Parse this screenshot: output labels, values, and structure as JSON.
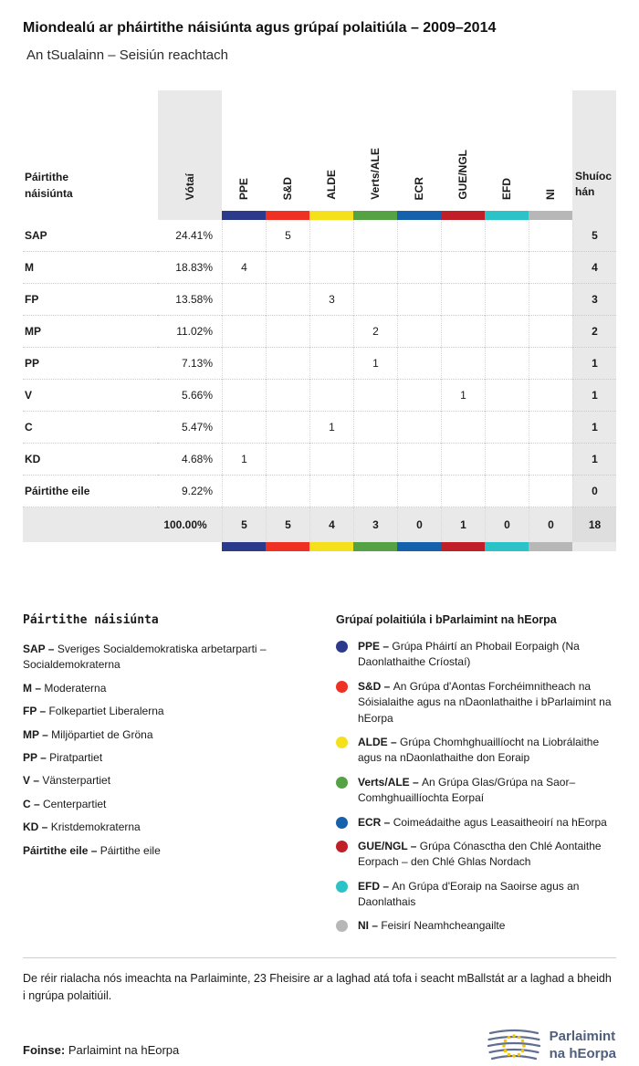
{
  "header": {
    "title": "Miondealú ar pháirtithe náisiúnta agus grúpaí polaitiúla – 2009–2014",
    "subtitle": "An tSualainn – Seisiún reachtach"
  },
  "table": {
    "row_header": "Páirtithe náisiúnta",
    "votes_header": "Vótaí",
    "seats_header": "Shuíochán",
    "groups": [
      {
        "label": "PPE",
        "color": "#2c3a8c"
      },
      {
        "label": "S&D",
        "color": "#ee3123"
      },
      {
        "label": "ALDE",
        "color": "#f4e11c"
      },
      {
        "label": "Verts/ALE",
        "color": "#55a245"
      },
      {
        "label": "ECR",
        "color": "#1661ac"
      },
      {
        "label": "GUE/NGL",
        "color": "#c01f28"
      },
      {
        "label": "EFD",
        "color": "#2bc3c7"
      },
      {
        "label": "NI",
        "color": "#b7b7b7"
      }
    ],
    "rows": [
      {
        "party": "SAP",
        "votes": "24.41%",
        "cells": [
          "",
          "5",
          "",
          "",
          "",
          "",
          "",
          ""
        ],
        "seats": "5"
      },
      {
        "party": "M",
        "votes": "18.83%",
        "cells": [
          "4",
          "",
          "",
          "",
          "",
          "",
          "",
          ""
        ],
        "seats": "4"
      },
      {
        "party": "FP",
        "votes": "13.58%",
        "cells": [
          "",
          "",
          "3",
          "",
          "",
          "",
          "",
          ""
        ],
        "seats": "3"
      },
      {
        "party": "MP",
        "votes": "11.02%",
        "cells": [
          "",
          "",
          "",
          "2",
          "",
          "",
          "",
          ""
        ],
        "seats": "2"
      },
      {
        "party": "PP",
        "votes": "7.13%",
        "cells": [
          "",
          "",
          "",
          "1",
          "",
          "",
          "",
          ""
        ],
        "seats": "1"
      },
      {
        "party": "V",
        "votes": "5.66%",
        "cells": [
          "",
          "",
          "",
          "",
          "",
          "1",
          "",
          ""
        ],
        "seats": "1"
      },
      {
        "party": "C",
        "votes": "5.47%",
        "cells": [
          "",
          "",
          "1",
          "",
          "",
          "",
          "",
          ""
        ],
        "seats": "1"
      },
      {
        "party": "KD",
        "votes": "4.68%",
        "cells": [
          "1",
          "",
          "",
          "",
          "",
          "",
          "",
          ""
        ],
        "seats": "1"
      },
      {
        "party": "Páirtithe eile",
        "votes": "9.22%",
        "cells": [
          "",
          "",
          "",
          "",
          "",
          "",
          "",
          ""
        ],
        "seats": "0"
      }
    ],
    "total": {
      "votes": "100.00%",
      "cells": [
        "5",
        "5",
        "4",
        "3",
        "0",
        "1",
        "0",
        "0"
      ],
      "seats": "18"
    }
  },
  "chart_data": {
    "type": "table",
    "title": "Miondealú ar pháirtithe náisiúnta agus grúpaí polaitiúla – 2009–2014",
    "subtitle": "An tSualainn – Seisiún reachtach",
    "columns": [
      "Páirtithe náisiúnta",
      "Vótaí",
      "PPE",
      "S&D",
      "ALDE",
      "Verts/ALE",
      "ECR",
      "GUE/NGL",
      "EFD",
      "NI",
      "Shuíochán"
    ],
    "rows": [
      [
        "SAP",
        "24.41%",
        "",
        "5",
        "",
        "",
        "",
        "",
        "",
        "",
        "5"
      ],
      [
        "M",
        "18.83%",
        "4",
        "",
        "",
        "",
        "",
        "",
        "",
        "",
        "4"
      ],
      [
        "FP",
        "13.58%",
        "",
        "",
        "3",
        "",
        "",
        "",
        "",
        "",
        "3"
      ],
      [
        "MP",
        "11.02%",
        "",
        "",
        "",
        "2",
        "",
        "",
        "",
        "",
        "2"
      ],
      [
        "PP",
        "7.13%",
        "",
        "",
        "",
        "1",
        "",
        "",
        "",
        "",
        "1"
      ],
      [
        "V",
        "5.66%",
        "",
        "",
        "",
        "",
        "",
        "1",
        "",
        "",
        "1"
      ],
      [
        "C",
        "5.47%",
        "",
        "",
        "1",
        "",
        "",
        "",
        "",
        "",
        "1"
      ],
      [
        "KD",
        "4.68%",
        "1",
        "",
        "",
        "",
        "",
        "",
        "",
        "",
        "1"
      ],
      [
        "Páirtithe eile",
        "9.22%",
        "",
        "",
        "",
        "",
        "",
        "",
        "",
        "",
        "0"
      ],
      [
        "",
        "100.00%",
        "5",
        "5",
        "4",
        "3",
        "0",
        "1",
        "0",
        "0",
        "18"
      ]
    ]
  },
  "legend_parties": {
    "title": "Páirtithe náisiúnta",
    "items": [
      {
        "abbr": "SAP",
        "name": "Sveriges Socialdemokratiska arbetarparti – Socialdemokraterna"
      },
      {
        "abbr": "M",
        "name": "Moderaterna"
      },
      {
        "abbr": "FP",
        "name": "Folkepartiet Liberalerna"
      },
      {
        "abbr": "MP",
        "name": "Miljöpartiet de Gröna"
      },
      {
        "abbr": "PP",
        "name": "Piratpartiet"
      },
      {
        "abbr": "V",
        "name": "Vänsterpartiet"
      },
      {
        "abbr": "C",
        "name": "Centerpartiet"
      },
      {
        "abbr": "KD",
        "name": "Kristdemokraterna"
      },
      {
        "abbr": "Páirtithe eile",
        "name": "Páirtithe eile"
      }
    ]
  },
  "legend_groups": {
    "title": "Grúpaí polaitiúla i bParlaimint na hEorpa",
    "items": [
      {
        "abbr": "PPE",
        "color": "#2c3a8c",
        "name": "Grúpa Pháirtí an Phobail Eorpaigh (Na Daonlathaithe Críostaí)"
      },
      {
        "abbr": "S&D",
        "color": "#ee3123",
        "name": "An Grúpa d'Aontas Forchéimnitheach na Sóisialaithe agus na nDaonlathaithe i bParlaimint na hEorpa"
      },
      {
        "abbr": "ALDE",
        "color": "#f4e11c",
        "name": "Grúpa Chomhghuaillíocht na Liobrálaithe agus na nDaonlathaithe don Eoraip"
      },
      {
        "abbr": "Verts/ALE",
        "color": "#55a245",
        "name": "An Grúpa Glas/Grúpa na Saor–Comhghuaillíochta Eorpaí"
      },
      {
        "abbr": "ECR",
        "color": "#1661ac",
        "name": "Coimeádaithe agus Leasaitheoirí na hEorpa"
      },
      {
        "abbr": "GUE/NGL",
        "color": "#c01f28",
        "name": "Grúpa Cónasctha den Chlé Aontaithe Eorpach – den Chlé Ghlas Nordach"
      },
      {
        "abbr": "EFD",
        "color": "#2bc3c7",
        "name": "An Grúpa d'Eoraip na Saoirse agus an Daonlathais"
      },
      {
        "abbr": "NI",
        "color": "#b7b7b7",
        "name": "Feisirí Neamhcheangailte"
      }
    ]
  },
  "footer": {
    "note": "De réir rialacha nós imeachta na Parlaiminte, 23 Fheisire ar a laghad atá tofa i seacht mBallstát ar a laghad a bheidh i ngrúpa polaitiúil.",
    "source_label": "Foinse:",
    "source": "Parlaimint na hEorpa",
    "logo_text_line1": "Parlaimint",
    "logo_text_line2": "na hEorpa"
  }
}
